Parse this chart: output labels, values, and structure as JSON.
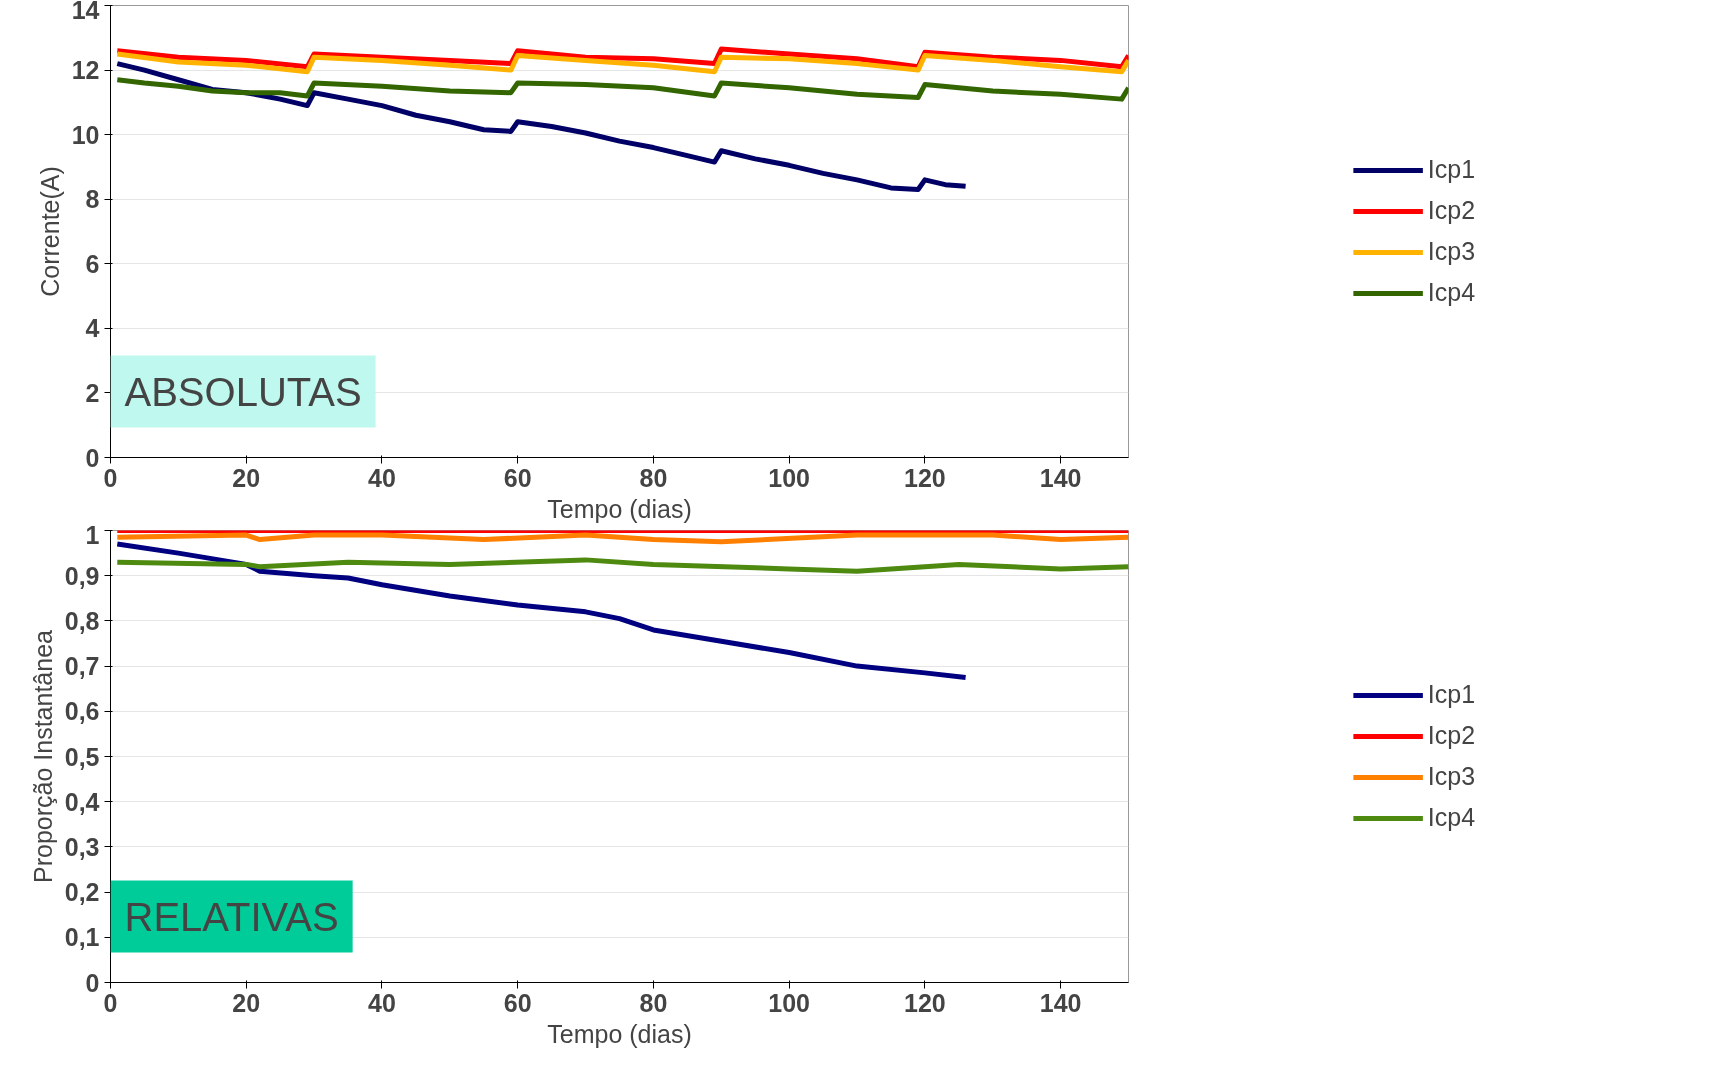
{
  "chart_data": [
    {
      "type": "line",
      "xlabel": "Tempo (dias)",
      "ylabel": "Corrente(A)",
      "xlim": [
        0,
        150
      ],
      "ylim": [
        0,
        14
      ],
      "xticks": [
        0,
        20,
        40,
        60,
        80,
        100,
        120,
        140
      ],
      "yticks": [
        0,
        2,
        4,
        6,
        8,
        10,
        12,
        14
      ],
      "grid": "y",
      "legend": "right",
      "annotations": [
        "ABSOLUTAS"
      ],
      "series": [
        {
          "name": "Icp1",
          "color": "#000066",
          "x": [
            1,
            5,
            10,
            15,
            20,
            25,
            29,
            30,
            35,
            40,
            45,
            50,
            55,
            59,
            60,
            65,
            70,
            75,
            80,
            85,
            89,
            90,
            95,
            100,
            105,
            110,
            115,
            119,
            120,
            123,
            126
          ],
          "values": [
            12.2,
            12.0,
            11.7,
            11.4,
            11.3,
            11.1,
            10.9,
            11.3,
            11.1,
            10.9,
            10.6,
            10.4,
            10.15,
            10.1,
            10.4,
            10.25,
            10.05,
            9.8,
            9.6,
            9.35,
            9.15,
            9.5,
            9.25,
            9.05,
            8.8,
            8.6,
            8.35,
            8.3,
            8.6,
            8.45,
            8.4
          ]
        },
        {
          "name": "Icp2",
          "color": "#ff0000",
          "x": [
            1,
            10,
            20,
            29,
            30,
            40,
            50,
            59,
            60,
            70,
            80,
            89,
            90,
            100,
            110,
            119,
            120,
            130,
            140,
            149,
            150
          ],
          "values": [
            12.6,
            12.4,
            12.3,
            12.1,
            12.5,
            12.4,
            12.3,
            12.2,
            12.6,
            12.4,
            12.35,
            12.2,
            12.65,
            12.5,
            12.35,
            12.1,
            12.55,
            12.4,
            12.3,
            12.1,
            12.45
          ]
        },
        {
          "name": "Icp3",
          "color": "#ffb300",
          "x": [
            1,
            10,
            20,
            29,
            30,
            40,
            50,
            59,
            60,
            70,
            80,
            89,
            90,
            100,
            110,
            119,
            120,
            130,
            140,
            149,
            150
          ],
          "values": [
            12.5,
            12.25,
            12.15,
            11.95,
            12.4,
            12.3,
            12.15,
            12.0,
            12.45,
            12.3,
            12.15,
            11.95,
            12.4,
            12.35,
            12.2,
            12.0,
            12.45,
            12.3,
            12.1,
            11.95,
            12.3
          ]
        },
        {
          "name": "Icp4",
          "color": "#336600",
          "x": [
            1,
            5,
            10,
            15,
            20,
            25,
            29,
            30,
            40,
            50,
            59,
            60,
            70,
            80,
            89,
            90,
            100,
            110,
            119,
            120,
            130,
            140,
            149,
            150
          ],
          "values": [
            11.7,
            11.6,
            11.5,
            11.35,
            11.3,
            11.3,
            11.2,
            11.6,
            11.5,
            11.35,
            11.3,
            11.6,
            11.55,
            11.45,
            11.2,
            11.6,
            11.45,
            11.25,
            11.15,
            11.55,
            11.35,
            11.25,
            11.1,
            11.45
          ]
        }
      ]
    },
    {
      "type": "line",
      "xlabel": "Tempo (dias)",
      "ylabel": "Proporção Instantânea",
      "xlim": [
        0,
        150
      ],
      "ylim": [
        0,
        1
      ],
      "xticks": [
        0,
        20,
        40,
        60,
        80,
        100,
        120,
        140
      ],
      "yticks": [
        0,
        {
          "value": 0.1,
          "label": "0,1"
        },
        {
          "value": 0.2,
          "label": "0,2"
        },
        {
          "value": 0.3,
          "label": "0,3"
        },
        {
          "value": 0.4,
          "label": "0,4"
        },
        {
          "value": 0.5,
          "label": "0,5"
        },
        {
          "value": 0.6,
          "label": "0,6"
        },
        {
          "value": 0.7,
          "label": "0,7"
        },
        {
          "value": 0.8,
          "label": "0,8"
        },
        {
          "value": 0.9,
          "label": "0,9"
        },
        1
      ],
      "grid": "y",
      "legend": "right",
      "annotations": [
        "RELATIVAS"
      ],
      "series": [
        {
          "name": "Icp1",
          "color": "#000080",
          "x": [
            1,
            10,
            20,
            22,
            30,
            35,
            40,
            50,
            60,
            70,
            75,
            80,
            90,
            100,
            110,
            120,
            126
          ],
          "values": [
            0.97,
            0.95,
            0.925,
            0.91,
            0.9,
            0.895,
            0.88,
            0.855,
            0.835,
            0.82,
            0.805,
            0.78,
            0.755,
            0.73,
            0.7,
            0.685,
            0.675
          ]
        },
        {
          "name": "Icp2",
          "color": "#ff0000",
          "x": [
            1,
            150
          ],
          "values": [
            1,
            1
          ]
        },
        {
          "name": "Icp3",
          "color": "#ff7f00",
          "x": [
            1,
            20,
            22,
            30,
            40,
            55,
            70,
            80,
            90,
            110,
            130,
            140,
            150
          ],
          "values": [
            0.985,
            0.99,
            0.98,
            0.99,
            0.99,
            0.98,
            0.99,
            0.98,
            0.975,
            0.99,
            0.99,
            0.98,
            0.985
          ]
        },
        {
          "name": "Icp4",
          "color": "#4f8a10",
          "x": [
            1,
            20,
            22,
            35,
            50,
            70,
            80,
            100,
            110,
            125,
            140,
            150
          ],
          "values": [
            0.93,
            0.925,
            0.92,
            0.93,
            0.925,
            0.935,
            0.925,
            0.915,
            0.91,
            0.925,
            0.915,
            0.92
          ]
        }
      ]
    }
  ]
}
